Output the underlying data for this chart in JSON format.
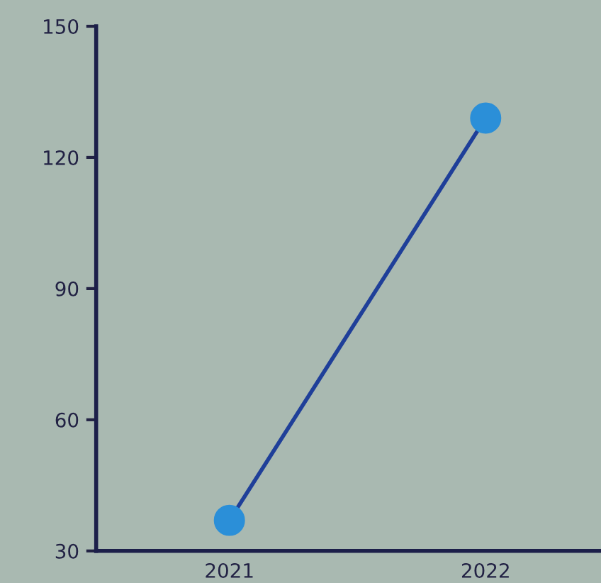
{
  "chart_data": {
    "type": "line",
    "categories": [
      "2021",
      "2022"
    ],
    "series": [
      {
        "color": "#1f3f99",
        "values": [
          37,
          129
        ]
      }
    ],
    "marker": "circle",
    "line_style": "solid",
    "ylim": [
      30,
      150
    ],
    "yticks": [
      30,
      60,
      90,
      120,
      150
    ],
    "grid": false,
    "legend": false
  }
}
